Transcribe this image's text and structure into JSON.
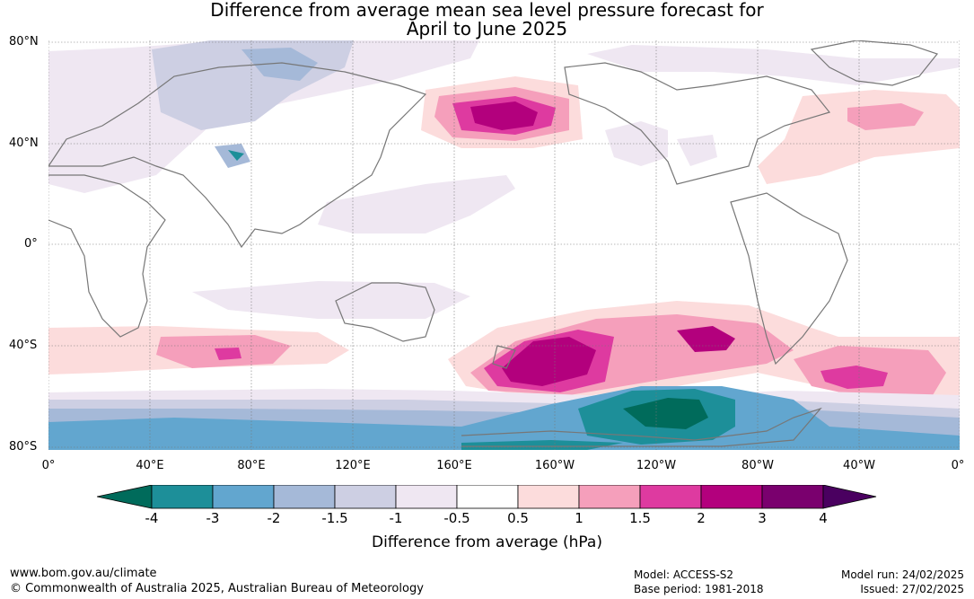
{
  "title": {
    "line1": "Difference from average mean sea level pressure forecast for",
    "line2": "April to June 2025"
  },
  "lat_labels": [
    "80°N",
    "40°N",
    "0°",
    "40°S",
    "80°S"
  ],
  "lon_labels": [
    "0°",
    "40°E",
    "80°E",
    "120°E",
    "160°E",
    "160°W",
    "120°W",
    "80°W",
    "40°W",
    "0°"
  ],
  "colorbar": {
    "ticks": [
      "-4",
      "-3",
      "-2",
      "-1.5",
      "-1",
      "-0.5",
      "0.5",
      "1",
      "1.5",
      "2",
      "3",
      "4"
    ],
    "colors": [
      "#006b5b",
      "#1d8f99",
      "#62a6cf",
      "#a5b9d8",
      "#cdcfe3",
      "#efe7f2",
      "#ffffff",
      "#fcdcdc",
      "#f59fbb",
      "#de3aa0",
      "#b3007d",
      "#7a006e",
      "#4a0060"
    ],
    "label": "Difference from average (hPa)"
  },
  "footer": {
    "url": "www.bom.gov.au/climate",
    "copyright": "© Commonwealth of Australia 2025, Australian Bureau of Meteorology",
    "model": "Model: ACCESS-S2",
    "base_period": "Base period: 1981-2018",
    "model_run": "Model run: 24/02/2025",
    "issued": "Issued: 27/02/2025"
  }
}
